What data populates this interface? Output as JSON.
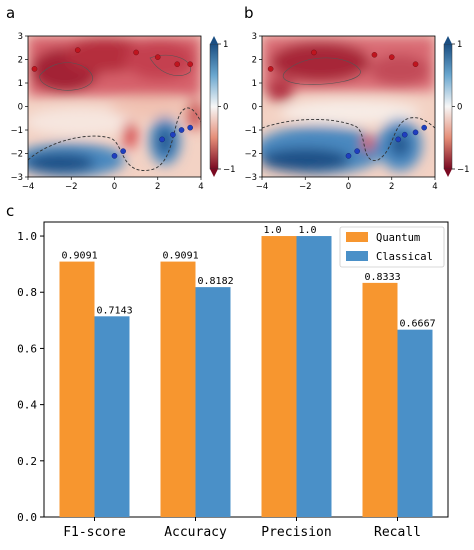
{
  "panels": {
    "a": {
      "letter": "a"
    },
    "b": {
      "letter": "b"
    },
    "c": {
      "letter": "c"
    }
  },
  "heatmap_ticks": {
    "x": [
      "−4",
      "−2",
      "0",
      "2",
      "4"
    ],
    "y": [
      "3",
      "2",
      "1",
      "0",
      "−1",
      "−2",
      "−3"
    ],
    "colorbar": [
      "1",
      "0",
      "−1"
    ]
  },
  "colors": {
    "quantum": "#f7962f",
    "classical": "#4a90c8",
    "positive_red": "#c0151f",
    "negative_blue": "#1f3fbf"
  },
  "chart_data": [
    {
      "panel": "a",
      "type": "heatmap",
      "xlim": [
        -4,
        4
      ],
      "ylim": [
        -3,
        3
      ],
      "colorbar_range": [
        -1,
        1
      ],
      "decision_boundary": "dashed",
      "points_red": [
        [
          -3.7,
          1.6
        ],
        [
          -1.7,
          2.4
        ],
        [
          1.0,
          2.3
        ],
        [
          2.0,
          2.1
        ],
        [
          2.9,
          1.8
        ],
        [
          3.5,
          1.8
        ]
      ],
      "points_blue": [
        [
          0.0,
          -2.1
        ],
        [
          0.4,
          -1.9
        ],
        [
          2.2,
          -1.4
        ],
        [
          2.7,
          -1.2
        ],
        [
          3.1,
          -1.0
        ],
        [
          3.5,
          -0.9
        ]
      ]
    },
    {
      "panel": "b",
      "type": "heatmap",
      "xlim": [
        -4,
        4
      ],
      "ylim": [
        -3,
        3
      ],
      "colorbar_range": [
        -1,
        1
      ],
      "decision_boundary": "dashed",
      "points_red": [
        [
          -3.6,
          1.6
        ],
        [
          -1.6,
          2.3
        ],
        [
          1.2,
          2.2
        ],
        [
          2.0,
          2.1
        ],
        [
          3.1,
          1.8
        ]
      ],
      "points_blue": [
        [
          0.0,
          -2.1
        ],
        [
          0.4,
          -1.9
        ],
        [
          2.3,
          -1.4
        ],
        [
          2.6,
          -1.2
        ],
        [
          3.1,
          -1.1
        ],
        [
          3.5,
          -0.9
        ]
      ]
    },
    {
      "panel": "c",
      "type": "bar",
      "categories": [
        "F1-score",
        "Accuracy",
        "Precision",
        "Recall"
      ],
      "series": [
        {
          "name": "Quantum",
          "values": [
            0.9091,
            0.9091,
            1.0,
            0.8333
          ],
          "labels": [
            "0.9091",
            "0.9091",
            "1.0",
            "0.8333"
          ]
        },
        {
          "name": "Classical",
          "values": [
            0.7143,
            0.8182,
            1.0,
            0.6667
          ],
          "labels": [
            "0.7143",
            "0.8182",
            "1.0",
            "0.6667"
          ]
        }
      ],
      "ylim": [
        0,
        1.05
      ],
      "yticks": [
        "0.0",
        "0.2",
        "0.4",
        "0.6",
        "0.8",
        "1.0"
      ],
      "legend_position": "top-right"
    }
  ]
}
